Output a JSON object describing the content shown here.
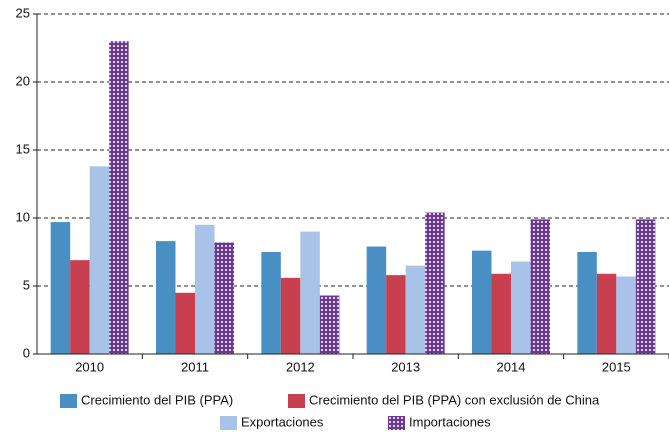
{
  "chart_data": {
    "type": "bar",
    "categories": [
      "2010",
      "2011",
      "2012",
      "2013",
      "2014",
      "2015"
    ],
    "series": [
      {
        "name": "Crecimiento del PIB (PPA)",
        "color": "#4a8fc4",
        "values": [
          9.7,
          8.3,
          7.5,
          7.9,
          7.6,
          7.5
        ]
      },
      {
        "name": "Crecimiento del PIB (PPA) con exclusión de China",
        "color": "#c8404f",
        "values": [
          6.9,
          4.5,
          5.6,
          5.8,
          5.9,
          5.9
        ]
      },
      {
        "name": "Exportaciones",
        "color": "#a9c3e8",
        "values": [
          13.8,
          9.5,
          9.0,
          6.5,
          6.8,
          5.7
        ]
      },
      {
        "name": "Importaciones",
        "color": "#6b3a8f",
        "fill_pattern": "dots",
        "values": [
          23.0,
          8.2,
          4.3,
          10.4,
          9.9,
          9.9
        ]
      }
    ],
    "ylim": [
      0,
      25
    ],
    "yticks": [
      0,
      5,
      10,
      15,
      20,
      25
    ],
    "grid": true,
    "legend": "bottom"
  }
}
